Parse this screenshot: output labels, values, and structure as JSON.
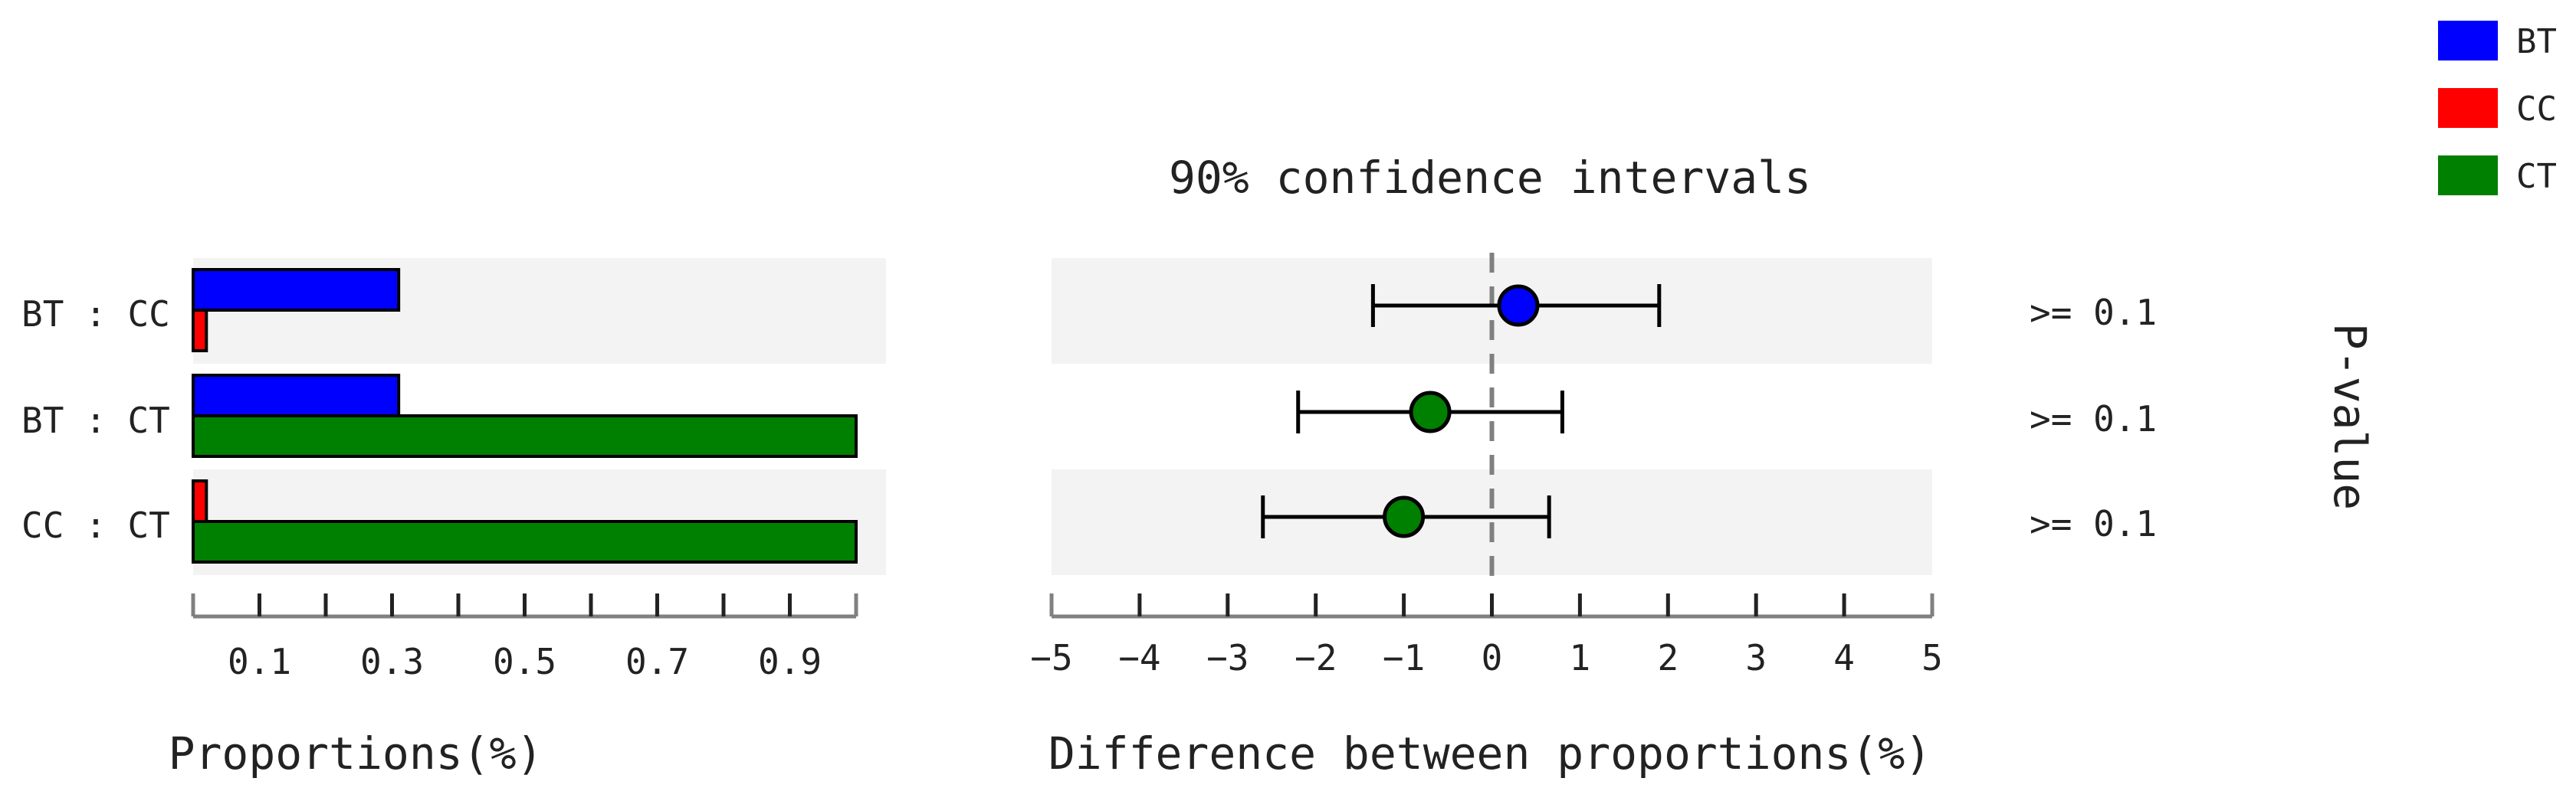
{
  "chart_data": [
    {
      "type": "bar",
      "orientation": "horizontal",
      "xlabel": "Proportions(%)",
      "xticks": [
        "0.1",
        "0.3",
        "0.5",
        "0.7",
        "0.9"
      ],
      "xlim": [
        0,
        1.0
      ],
      "categories": [
        "BT : CC",
        "BT : CT",
        "CC : CT"
      ],
      "rows": [
        {
          "label": "BT : CC",
          "bars": [
            {
              "group": "BT",
              "value": 0.31
            },
            {
              "group": "CC",
              "value": 0.02
            }
          ]
        },
        {
          "label": "BT : CT",
          "bars": [
            {
              "group": "BT",
              "value": 0.31
            },
            {
              "group": "CT",
              "value": 1.0
            }
          ]
        },
        {
          "label": "CC : CT",
          "bars": [
            {
              "group": "CC",
              "value": 0.02
            },
            {
              "group": "CT",
              "value": 1.0
            }
          ]
        }
      ]
    },
    {
      "type": "scatter",
      "subtype": "confidence-interval",
      "title": "90% confidence intervals",
      "xlabel": "Difference between proportions(%)",
      "xticks": [
        "-5",
        "-4",
        "-3",
        "-2",
        "-1",
        "0",
        "1",
        "2",
        "3",
        "4",
        "5"
      ],
      "xlim": [
        -5,
        5
      ],
      "reference_line": 0,
      "points": [
        {
          "label": "BT : CC",
          "estimate": 0.3,
          "lower": -1.35,
          "upper": 1.9,
          "group": "BT",
          "pvalue": ">= 0.1"
        },
        {
          "label": "BT : CT",
          "estimate": -0.7,
          "lower": -2.2,
          "upper": 0.8,
          "group": "CT",
          "pvalue": ">= 0.1"
        },
        {
          "label": "CC : CT",
          "estimate": -1.0,
          "lower": -2.6,
          "upper": 0.65,
          "group": "CT",
          "pvalue": ">= 0.1"
        }
      ],
      "pvalue_label": "P-value"
    }
  ],
  "legend": [
    {
      "name": "BT",
      "color": "#0000ff"
    },
    {
      "name": "CC",
      "color": "#ff0000"
    },
    {
      "name": "CT",
      "color": "#008000"
    }
  ]
}
